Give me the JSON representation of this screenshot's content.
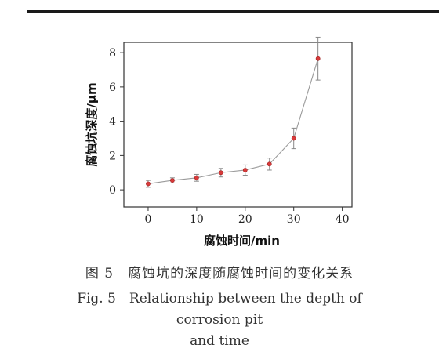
{
  "caption": {
    "zh": "图 5　腐蚀坑的深度随腐蚀时间的变化关系",
    "en_line1": "Fig. 5　Relationship between the depth of corrosion pit",
    "en_line2": "and time"
  },
  "chart_data": {
    "type": "line",
    "xlabel": "腐蚀时间/min",
    "ylabel": "腐蚀坑深度/μm",
    "xlim": [
      -5,
      42
    ],
    "ylim": [
      -1,
      8.6
    ],
    "xticks": [
      0,
      10,
      20,
      30,
      40
    ],
    "yticks": [
      0,
      2,
      4,
      6,
      8
    ],
    "grid": false,
    "series": [
      {
        "x": [
          0,
          5,
          10,
          15,
          20,
          25,
          30,
          35
        ],
        "y": [
          0.35,
          0.55,
          0.7,
          1.0,
          1.15,
          1.5,
          3.0,
          7.65
        ],
        "error": [
          0.2,
          0.15,
          0.2,
          0.25,
          0.3,
          0.35,
          0.6,
          1.25
        ]
      }
    ],
    "colors": {
      "line": "#9a9a9a",
      "marker": "#d83a3a",
      "error": "#888888",
      "axis": "#333333"
    }
  }
}
